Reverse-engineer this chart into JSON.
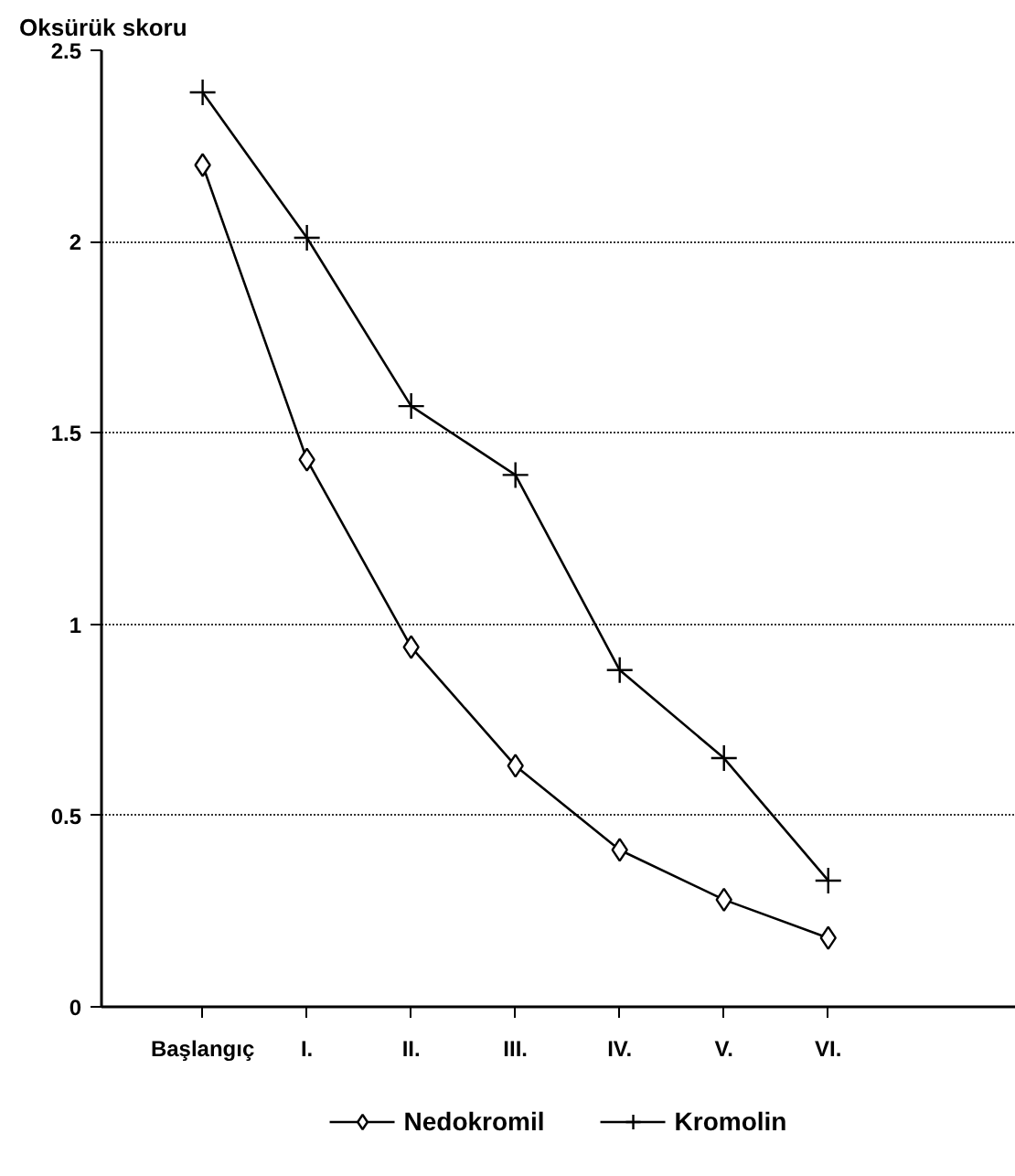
{
  "chart_data": {
    "type": "line",
    "ylabel": "Oksürük skoru",
    "categories": [
      "Başlangıç",
      "I.",
      "II.",
      "III.",
      "IV.",
      "V.",
      "VI."
    ],
    "series": [
      {
        "name": "Nedokromil",
        "color": "#000000",
        "marker": "diamond",
        "values": [
          2.2,
          1.43,
          0.94,
          0.63,
          0.41,
          0.28,
          0.18
        ]
      },
      {
        "name": "Kromolin",
        "color": "#000000",
        "marker": "cross",
        "values": [
          2.39,
          2.01,
          1.57,
          1.39,
          0.88,
          0.65,
          0.33
        ]
      }
    ],
    "ylim": [
      0,
      2.5
    ],
    "yticks": [
      0,
      0.5,
      1,
      1.5,
      2,
      2.5
    ],
    "grid": "y",
    "legend": "bottom",
    "line_style": "solid"
  }
}
